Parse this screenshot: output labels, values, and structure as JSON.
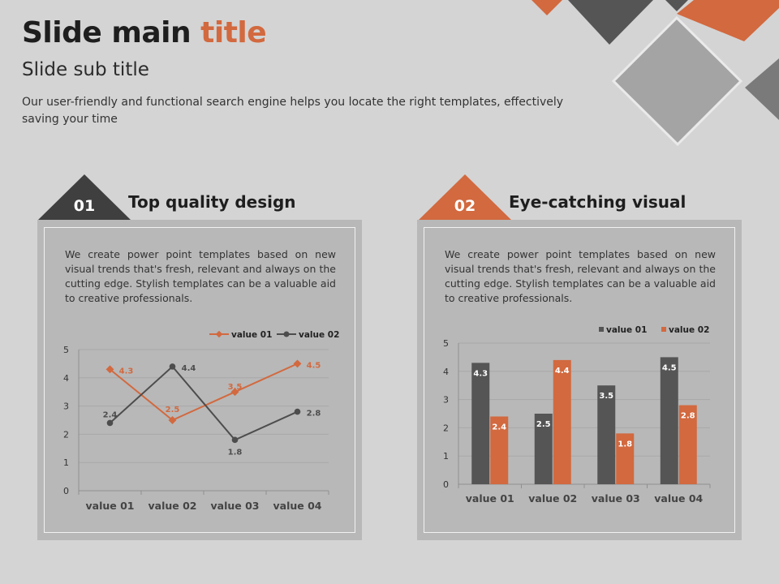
{
  "header": {
    "title_main": "Slide main",
    "title_accent": "title",
    "subtitle": "Slide sub title",
    "description": "Our user-friendly and functional search engine helps you locate the right templates, effectively saving your time"
  },
  "colors": {
    "accent": "#d2693f",
    "dark": "#4d4d4d",
    "panel": "#b8b8b8",
    "background": "#d4d4d4"
  },
  "sections": [
    {
      "number": "01",
      "title": "Top quality design",
      "body": "We create power point templates based on new visual trends that's fresh, relevant and always on the cutting edge. Stylish templates can be a valuable aid to creative professionals."
    },
    {
      "number": "02",
      "title": "Eye-catching visual",
      "body": "We create power point templates based on new visual trends that's fresh, relevant and always on the cutting edge. Stylish templates can be a valuable aid to creative professionals."
    }
  ],
  "chart_data": [
    {
      "type": "line",
      "categories": [
        "value 01",
        "value 02",
        "value 03",
        "value 04"
      ],
      "series": [
        {
          "name": "value 01",
          "values": [
            4.3,
            2.5,
            3.5,
            4.5
          ],
          "color": "#d2693f",
          "labels": [
            "4.3",
            "2.5",
            "3.5",
            "4.5"
          ]
        },
        {
          "name": "value 02",
          "values": [
            2.4,
            4.4,
            1.8,
            2.8
          ],
          "color": "#4d4d4d",
          "labels": [
            "2.4",
            "4.4",
            "1.8",
            "2.8"
          ]
        }
      ],
      "yticks": [
        "0",
        "1",
        "2",
        "3",
        "4",
        "5"
      ],
      "ylim": [
        0,
        5
      ],
      "grid": true,
      "legend": "top-right"
    },
    {
      "type": "bar",
      "categories": [
        "value 01",
        "value 02",
        "value 03",
        "value 04"
      ],
      "series": [
        {
          "name": "value 01",
          "values": [
            4.3,
            2.5,
            3.5,
            4.5
          ],
          "color": "#555555",
          "labels": [
            "4.3",
            "2.5",
            "3.5",
            "4.5"
          ]
        },
        {
          "name": "value 02",
          "values": [
            2.4,
            4.4,
            1.8,
            2.8
          ],
          "color": "#d2693f",
          "labels": [
            "2.4",
            "4.4",
            "1.8",
            "2.8"
          ]
        }
      ],
      "yticks": [
        "0",
        "1",
        "2",
        "3",
        "4",
        "5"
      ],
      "ylim": [
        0,
        5
      ],
      "grid": true,
      "legend": "top-right"
    }
  ]
}
